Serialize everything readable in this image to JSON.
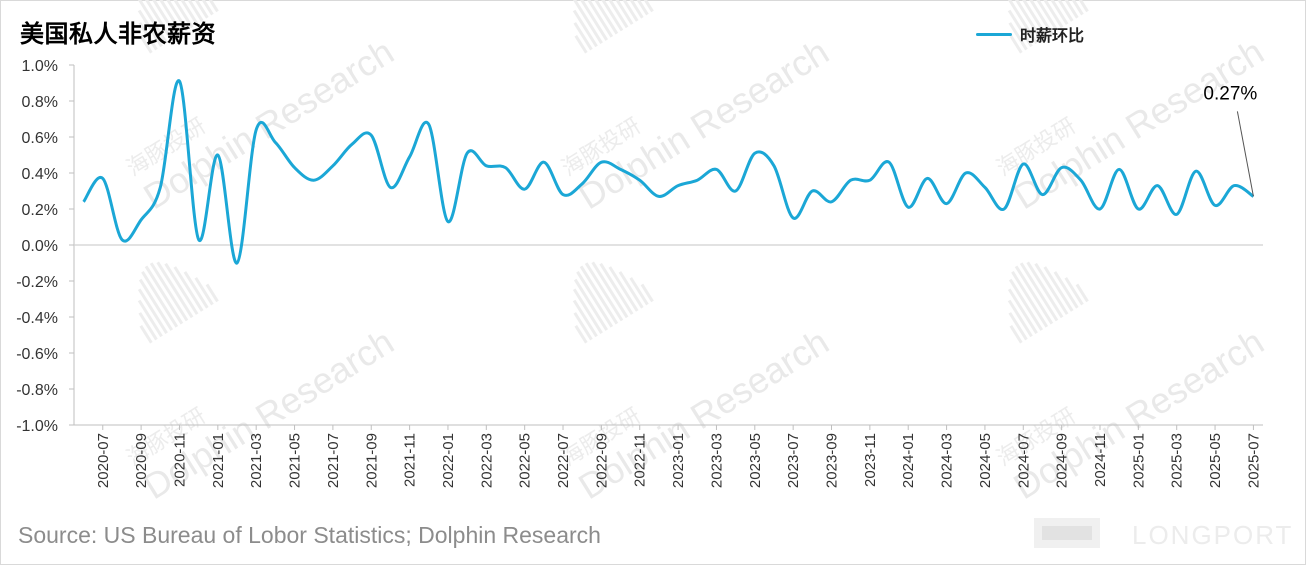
{
  "title": "美国私人非农薪资",
  "legend": {
    "label": "时薪环比",
    "color": "#1ba7d6"
  },
  "source": "Source: US Bureau of Lobor Statistics; Dolphin Research",
  "watermark": {
    "cn": "海豚投研",
    "en": "Dolphin Research"
  },
  "brand": {
    "name": "LONGPORT"
  },
  "chart_data": {
    "type": "line",
    "title": "美国私人非农薪资",
    "xlabel": "",
    "ylabel": "",
    "ylim": [
      -1.0,
      1.0
    ],
    "ytick_step": 0.2,
    "y_tick_labels": [
      "1.0%",
      "0.8%",
      "0.6%",
      "0.4%",
      "0.2%",
      "0.0%",
      "-0.2%",
      "-0.4%",
      "-0.6%",
      "-0.8%",
      "-1.0%"
    ],
    "x_tick_labels": [
      "2020-07",
      "2020-09",
      "2020-11",
      "2021-01",
      "2021-03",
      "2021-05",
      "2021-07",
      "2021-09",
      "2021-11",
      "2022-01",
      "2022-03",
      "2022-05",
      "2022-07",
      "2022-09",
      "2022-11",
      "2023-01",
      "2023-03",
      "2023-05",
      "2023-07",
      "2023-09",
      "2023-11",
      "2024-01",
      "2024-03",
      "2024-05",
      "2024-07",
      "2024-09",
      "2024-11",
      "2025-01",
      "2025-03",
      "2025-05",
      "2025-07"
    ],
    "series": [
      {
        "name": "时薪环比",
        "color": "#1ba7d6",
        "x": [
          "2020-06",
          "2020-07",
          "2020-08",
          "2020-09",
          "2020-10",
          "2020-11",
          "2020-12",
          "2021-01",
          "2021-02",
          "2021-03",
          "2021-04",
          "2021-05",
          "2021-06",
          "2021-07",
          "2021-08",
          "2021-09",
          "2021-10",
          "2021-11",
          "2021-12",
          "2022-01",
          "2022-02",
          "2022-03",
          "2022-04",
          "2022-05",
          "2022-06",
          "2022-07",
          "2022-08",
          "2022-09",
          "2022-10",
          "2022-11",
          "2022-12",
          "2023-01",
          "2023-02",
          "2023-03",
          "2023-04",
          "2023-05",
          "2023-06",
          "2023-07",
          "2023-08",
          "2023-09",
          "2023-10",
          "2023-11",
          "2023-12",
          "2024-01",
          "2024-02",
          "2024-03",
          "2024-04",
          "2024-05",
          "2024-06",
          "2024-07",
          "2024-08",
          "2024-09",
          "2024-10",
          "2024-11",
          "2024-12",
          "2025-01",
          "2025-02",
          "2025-03",
          "2025-04",
          "2025-05",
          "2025-06",
          "2025-07"
        ],
        "values": [
          0.24,
          0.37,
          0.03,
          0.14,
          0.32,
          0.91,
          0.03,
          0.5,
          -0.1,
          0.64,
          0.57,
          0.43,
          0.36,
          0.44,
          0.56,
          0.61,
          0.32,
          0.49,
          0.67,
          0.13,
          0.51,
          0.44,
          0.43,
          0.31,
          0.46,
          0.28,
          0.34,
          0.46,
          0.42,
          0.36,
          0.27,
          0.33,
          0.36,
          0.42,
          0.3,
          0.51,
          0.44,
          0.15,
          0.3,
          0.24,
          0.36,
          0.36,
          0.46,
          0.21,
          0.37,
          0.23,
          0.4,
          0.32,
          0.2,
          0.45,
          0.28,
          0.43,
          0.36,
          0.2,
          0.42,
          0.2,
          0.33,
          0.17,
          0.41,
          0.22,
          0.33,
          0.27
        ]
      }
    ],
    "annotations": [
      {
        "text": "0.27%",
        "x": "2025-07",
        "y": 0.27
      }
    ],
    "grid": false,
    "legend_position": "top-right"
  }
}
